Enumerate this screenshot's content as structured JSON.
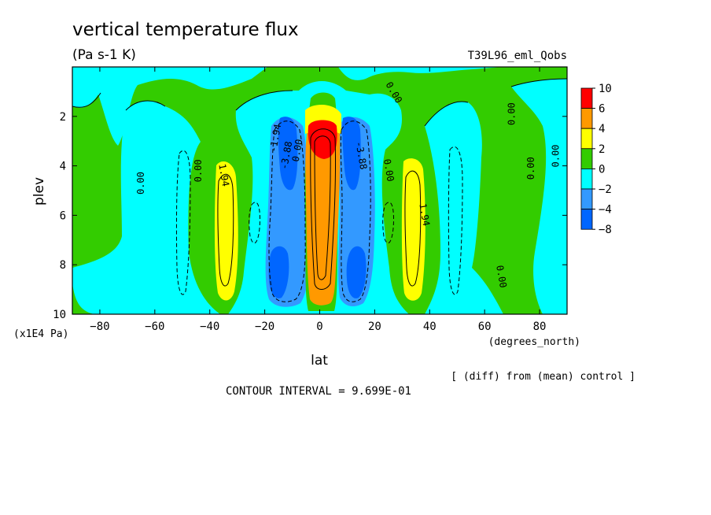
{
  "chart_data": {
    "type": "heatmap",
    "title": "vertical temperature flux",
    "subtitle": "(Pa s-1 K)",
    "experiment": "T39L96_eml_Qobs",
    "xlabel": "lat",
    "x_unit": "(degrees_north)",
    "ylabel": "plev",
    "y_unit": "(x1E4 Pa)",
    "xlim": [
      -90,
      90
    ],
    "ylim": [
      10,
      0
    ],
    "x_ticks": [
      {
        "value": -80,
        "label": "−80"
      },
      {
        "value": -60,
        "label": "−60"
      },
      {
        "value": -40,
        "label": "−40"
      },
      {
        "value": -20,
        "label": "−20"
      },
      {
        "value": 0,
        "label": "0"
      },
      {
        "value": 20,
        "label": "20"
      },
      {
        "value": 40,
        "label": "40"
      },
      {
        "value": 60,
        "label": "60"
      },
      {
        "value": 80,
        "label": "80"
      }
    ],
    "y_ticks": [
      {
        "value": 2,
        "label": "2"
      },
      {
        "value": 4,
        "label": "4"
      },
      {
        "value": 6,
        "label": "6"
      },
      {
        "value": 8,
        "label": "8"
      },
      {
        "value": 10,
        "label": "10"
      }
    ],
    "colorbar": {
      "labels": [
        "10",
        "6",
        "4",
        "2",
        "0",
        "−2",
        "−4",
        "−8"
      ],
      "colors": [
        "#ff0000",
        "#ff9900",
        "#ffff00",
        "#33cc00",
        "#00ffff",
        "#3399ff",
        "#0066ff"
      ]
    },
    "contour_labels": [
      {
        "text": "0.00",
        "lat": -64,
        "plev": 4.7,
        "rot": -90
      },
      {
        "text": "0.00",
        "lat": -43,
        "plev": 4.2,
        "rot": -90
      },
      {
        "text": "1.94",
        "lat": -36,
        "plev": 4.4,
        "rot": 80
      },
      {
        "text": "-1.94",
        "lat": -15,
        "plev": 2.9,
        "rot": -80
      },
      {
        "text": "-3.88",
        "lat": -11,
        "plev": 3.6,
        "rot": -80
      },
      {
        "text": "0.00",
        "lat": -7,
        "plev": 3.4,
        "rot": -80
      },
      {
        "text": "-3.88",
        "lat": 14,
        "plev": 3.6,
        "rot": 80
      },
      {
        "text": "0.00",
        "lat": 24,
        "plev": 4.2,
        "rot": 80
      },
      {
        "text": "0.00",
        "lat": 26,
        "plev": 1.1,
        "rot": 60
      },
      {
        "text": "1.94",
        "lat": 37,
        "plev": 6.0,
        "rot": 80
      },
      {
        "text": "0.00",
        "lat": 71,
        "plev": 1.9,
        "rot": -90
      },
      {
        "text": "0.00",
        "lat": 78,
        "plev": 4.1,
        "rot": -90
      },
      {
        "text": "0.00",
        "lat": 87,
        "plev": 3.6,
        "rot": -90
      },
      {
        "text": "0.00",
        "lat": 65,
        "plev": 8.5,
        "rot": 80
      }
    ],
    "contour_interval_text": "CONTOUR INTERVAL = 9.699E-01",
    "note": "[ (diff) from (mean) control ]"
  }
}
